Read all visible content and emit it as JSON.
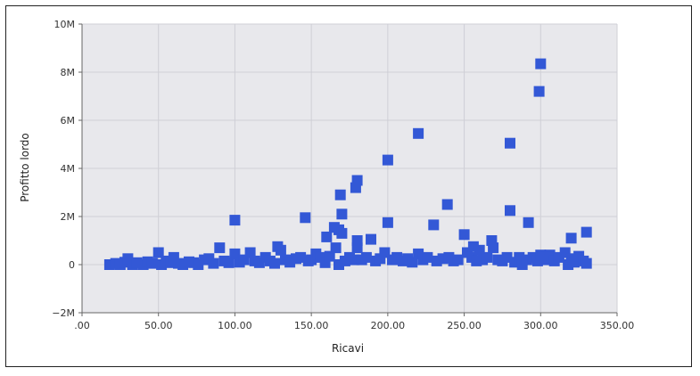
{
  "chart_data": {
    "type": "scatter",
    "title": "",
    "xlabel": "Ricavi",
    "ylabel": "Profitto lordo",
    "xlim": [
      0,
      350
    ],
    "ylim": [
      -2000000,
      10000000
    ],
    "x_ticks": [
      0,
      50,
      100,
      150,
      200,
      250,
      300,
      350
    ],
    "x_tick_labels": [
      ".00",
      "50.00",
      "100.00",
      "150.00",
      "200.00",
      "250.00",
      "300.00",
      "350.00"
    ],
    "y_ticks": [
      -2000000,
      0,
      2000000,
      4000000,
      6000000,
      8000000,
      10000000
    ],
    "y_tick_labels": [
      "−2M",
      "0",
      "2M",
      "4M",
      "6M",
      "8M",
      "10M"
    ],
    "grid": true,
    "legend": "none",
    "colors": {
      "marker": "#3358d6",
      "plot_background": "#e8e8ec",
      "grid": "#cfcfd6"
    },
    "series": [
      {
        "marker": "square",
        "points": [
          [
            18,
            0
          ],
          [
            22,
            50000
          ],
          [
            25,
            0
          ],
          [
            28,
            100000
          ],
          [
            30,
            250000
          ],
          [
            33,
            0
          ],
          [
            36,
            80000
          ],
          [
            40,
            0
          ],
          [
            43,
            120000
          ],
          [
            46,
            50000
          ],
          [
            50,
            500000
          ],
          [
            52,
            0
          ],
          [
            55,
            150000
          ],
          [
            58,
            80000
          ],
          [
            60,
            300000
          ],
          [
            63,
            50000
          ],
          [
            66,
            0
          ],
          [
            70,
            120000
          ],
          [
            73,
            80000
          ],
          [
            76,
            0
          ],
          [
            80,
            200000
          ],
          [
            83,
            250000
          ],
          [
            86,
            50000
          ],
          [
            90,
            700000
          ],
          [
            93,
            150000
          ],
          [
            96,
            80000
          ],
          [
            100,
            1850000
          ],
          [
            100,
            450000
          ],
          [
            103,
            100000
          ],
          [
            106,
            200000
          ],
          [
            110,
            500000
          ],
          [
            113,
            150000
          ],
          [
            116,
            80000
          ],
          [
            120,
            300000
          ],
          [
            123,
            150000
          ],
          [
            126,
            50000
          ],
          [
            128,
            750000
          ],
          [
            130,
            600000
          ],
          [
            133,
            200000
          ],
          [
            136,
            100000
          ],
          [
            140,
            250000
          ],
          [
            143,
            300000
          ],
          [
            146,
            1950000
          ],
          [
            148,
            150000
          ],
          [
            150,
            200000
          ],
          [
            153,
            450000
          ],
          [
            156,
            300000
          ],
          [
            159,
            80000
          ],
          [
            160,
            1150000
          ],
          [
            162,
            350000
          ],
          [
            165,
            1550000
          ],
          [
            166,
            700000
          ],
          [
            168,
            0
          ],
          [
            168,
            1450000
          ],
          [
            169,
            2900000
          ],
          [
            170,
            1300000
          ],
          [
            170,
            2100000
          ],
          [
            172,
            150000
          ],
          [
            175,
            300000
          ],
          [
            178,
            200000
          ],
          [
            179,
            3200000
          ],
          [
            180,
            3500000
          ],
          [
            180,
            1000000
          ],
          [
            180,
            700000
          ],
          [
            183,
            200000
          ],
          [
            186,
            300000
          ],
          [
            189,
            1050000
          ],
          [
            192,
            150000
          ],
          [
            195,
            250000
          ],
          [
            198,
            500000
          ],
          [
            200,
            4350000
          ],
          [
            200,
            1750000
          ],
          [
            203,
            200000
          ],
          [
            206,
            300000
          ],
          [
            210,
            150000
          ],
          [
            213,
            250000
          ],
          [
            216,
            100000
          ],
          [
            220,
            5450000
          ],
          [
            220,
            450000
          ],
          [
            223,
            200000
          ],
          [
            226,
            300000
          ],
          [
            230,
            1650000
          ],
          [
            232,
            150000
          ],
          [
            236,
            250000
          ],
          [
            239,
            2500000
          ],
          [
            240,
            300000
          ],
          [
            243,
            150000
          ],
          [
            246,
            200000
          ],
          [
            250,
            1250000
          ],
          [
            252,
            500000
          ],
          [
            255,
            300000
          ],
          [
            256,
            750000
          ],
          [
            258,
            150000
          ],
          [
            260,
            600000
          ],
          [
            262,
            200000
          ],
          [
            265,
            300000
          ],
          [
            268,
            1000000
          ],
          [
            269,
            700000
          ],
          [
            272,
            200000
          ],
          [
            275,
            150000
          ],
          [
            278,
            300000
          ],
          [
            280,
            5050000
          ],
          [
            280,
            2250000
          ],
          [
            283,
            100000
          ],
          [
            286,
            300000
          ],
          [
            288,
            0
          ],
          [
            291,
            200000
          ],
          [
            292,
            1750000
          ],
          [
            295,
            300000
          ],
          [
            298,
            150000
          ],
          [
            299,
            7200000
          ],
          [
            300,
            8350000
          ],
          [
            300,
            400000
          ],
          [
            303,
            200000
          ],
          [
            306,
            400000
          ],
          [
            309,
            150000
          ],
          [
            312,
            300000
          ],
          [
            316,
            500000
          ],
          [
            318,
            0
          ],
          [
            320,
            1100000
          ],
          [
            320,
            250000
          ],
          [
            322,
            100000
          ],
          [
            325,
            350000
          ],
          [
            328,
            150000
          ],
          [
            330,
            1350000
          ],
          [
            330,
            50000
          ]
        ]
      }
    ]
  }
}
